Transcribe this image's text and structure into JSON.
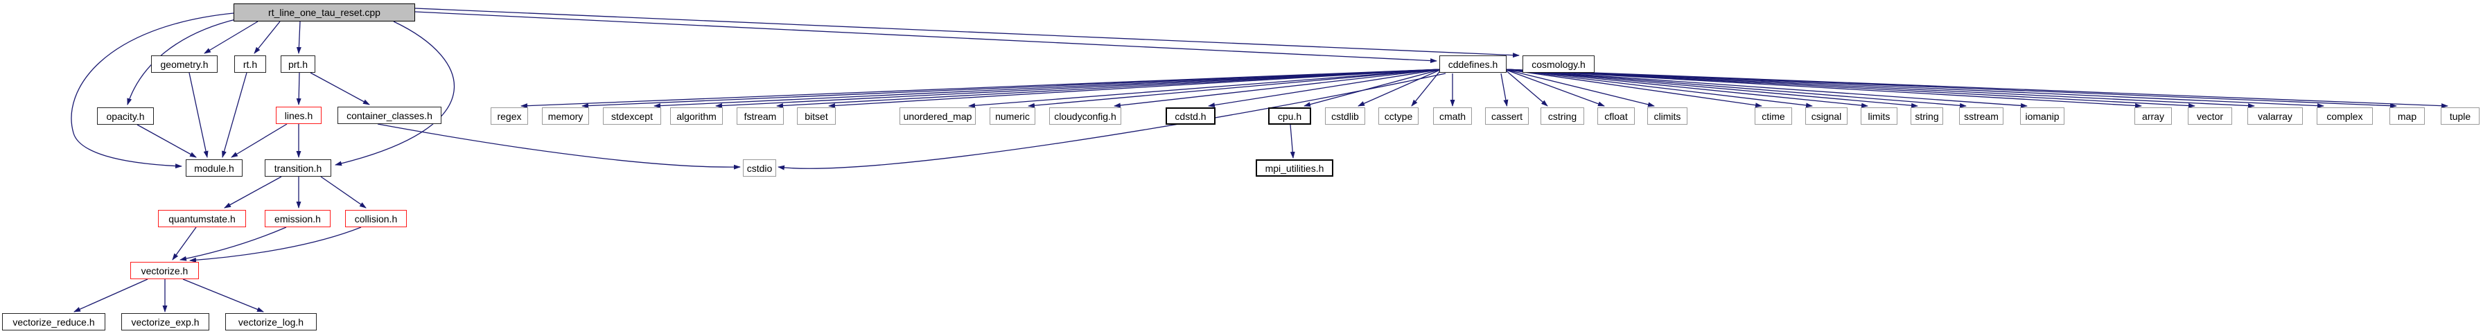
{
  "diagram": {
    "type": "include-dependency-graph",
    "root_file": "rt_line_one_tau_reset.cpp",
    "colors": {
      "edge": "#191970",
      "current_fill": "#bfbfbf",
      "node_border": "#242424",
      "bold_border": "#000000",
      "system_border": "#9a9a9a",
      "truncated_border": "#ff1a1a"
    },
    "nodes": [
      {
        "id": "main",
        "label": "rt_line_one_tau_reset.cpp",
        "style": "current"
      },
      {
        "id": "geometry",
        "label": "geometry.h",
        "style": "project"
      },
      {
        "id": "rt",
        "label": "rt.h",
        "style": "project"
      },
      {
        "id": "prt",
        "label": "prt.h",
        "style": "project"
      },
      {
        "id": "cddefines",
        "label": "cddefines.h",
        "style": "project"
      },
      {
        "id": "cosmology",
        "label": "cosmology.h",
        "style": "project"
      },
      {
        "id": "opacity",
        "label": "opacity.h",
        "style": "project"
      },
      {
        "id": "lines",
        "label": "lines.h",
        "style": "truncated"
      },
      {
        "id": "container_classes",
        "label": "container_classes.h",
        "style": "project"
      },
      {
        "id": "regex",
        "label": "regex",
        "style": "system"
      },
      {
        "id": "memory",
        "label": "memory",
        "style": "system"
      },
      {
        "id": "stdexcept",
        "label": "stdexcept",
        "style": "system"
      },
      {
        "id": "algorithm",
        "label": "algorithm",
        "style": "system"
      },
      {
        "id": "fstream",
        "label": "fstream",
        "style": "system"
      },
      {
        "id": "bitset",
        "label": "bitset",
        "style": "system"
      },
      {
        "id": "unordered_map",
        "label": "unordered_map",
        "style": "system"
      },
      {
        "id": "numeric",
        "label": "numeric",
        "style": "system"
      },
      {
        "id": "cloudyconfig",
        "label": "cloudyconfig.h",
        "style": "system"
      },
      {
        "id": "cdstd",
        "label": "cdstd.h",
        "style": "project-bold"
      },
      {
        "id": "cpu",
        "label": "cpu.h",
        "style": "project-bold"
      },
      {
        "id": "cstdlib",
        "label": "cstdlib",
        "style": "system"
      },
      {
        "id": "cctype",
        "label": "cctype",
        "style": "system"
      },
      {
        "id": "cmath",
        "label": "cmath",
        "style": "system"
      },
      {
        "id": "cassert",
        "label": "cassert",
        "style": "system"
      },
      {
        "id": "cstring",
        "label": "cstring",
        "style": "system"
      },
      {
        "id": "cfloat",
        "label": "cfloat",
        "style": "system"
      },
      {
        "id": "climits",
        "label": "climits",
        "style": "system"
      },
      {
        "id": "ctime",
        "label": "ctime",
        "style": "system"
      },
      {
        "id": "csignal",
        "label": "csignal",
        "style": "system"
      },
      {
        "id": "limits",
        "label": "limits",
        "style": "system"
      },
      {
        "id": "string",
        "label": "string",
        "style": "system"
      },
      {
        "id": "sstream",
        "label": "sstream",
        "style": "system"
      },
      {
        "id": "iomanip",
        "label": "iomanip",
        "style": "system"
      },
      {
        "id": "array",
        "label": "array",
        "style": "system"
      },
      {
        "id": "vector",
        "label": "vector",
        "style": "system"
      },
      {
        "id": "valarray",
        "label": "valarray",
        "style": "system"
      },
      {
        "id": "complex",
        "label": "complex",
        "style": "system"
      },
      {
        "id": "map",
        "label": "map",
        "style": "system"
      },
      {
        "id": "tuple",
        "label": "tuple",
        "style": "system"
      },
      {
        "id": "cstdio",
        "label": "cstdio",
        "style": "system"
      },
      {
        "id": "module",
        "label": "module.h",
        "style": "project"
      },
      {
        "id": "transition",
        "label": "transition.h",
        "style": "project"
      },
      {
        "id": "mpi_utilities",
        "label": "mpi_utilities.h",
        "style": "project-bold"
      },
      {
        "id": "quantumstate",
        "label": "quantumstate.h",
        "style": "truncated"
      },
      {
        "id": "emission",
        "label": "emission.h",
        "style": "truncated"
      },
      {
        "id": "collision",
        "label": "collision.h",
        "style": "truncated"
      },
      {
        "id": "vectorize",
        "label": "vectorize.h",
        "style": "truncated"
      },
      {
        "id": "vectorize_reduce",
        "label": "vectorize_reduce.h",
        "style": "project"
      },
      {
        "id": "vectorize_exp",
        "label": "vectorize_exp.h",
        "style": "project"
      },
      {
        "id": "vectorize_log",
        "label": "vectorize_log.h",
        "style": "project"
      }
    ],
    "edges": [
      {
        "from": "main",
        "to": "geometry"
      },
      {
        "from": "main",
        "to": "rt"
      },
      {
        "from": "main",
        "to": "prt"
      },
      {
        "from": "main",
        "to": "opacity"
      },
      {
        "from": "main",
        "to": "module"
      },
      {
        "from": "main",
        "to": "transition"
      },
      {
        "from": "main",
        "to": "cddefines"
      },
      {
        "from": "main",
        "to": "cosmology"
      },
      {
        "from": "geometry",
        "to": "module"
      },
      {
        "from": "rt",
        "to": "module"
      },
      {
        "from": "opacity",
        "to": "module"
      },
      {
        "from": "prt",
        "to": "lines"
      },
      {
        "from": "prt",
        "to": "container_classes"
      },
      {
        "from": "lines",
        "to": "module"
      },
      {
        "from": "lines",
        "to": "transition"
      },
      {
        "from": "container_classes",
        "to": "cstdio"
      },
      {
        "from": "transition",
        "to": "quantumstate"
      },
      {
        "from": "transition",
        "to": "emission"
      },
      {
        "from": "transition",
        "to": "collision"
      },
      {
        "from": "quantumstate",
        "to": "vectorize"
      },
      {
        "from": "emission",
        "to": "vectorize"
      },
      {
        "from": "collision",
        "to": "vectorize"
      },
      {
        "from": "vectorize",
        "to": "vectorize_reduce"
      },
      {
        "from": "vectorize",
        "to": "vectorize_exp"
      },
      {
        "from": "vectorize",
        "to": "vectorize_log"
      },
      {
        "from": "cpu",
        "to": "mpi_utilities"
      },
      {
        "from": "cddefines",
        "to": "cstdio"
      },
      {
        "from": "cddefines",
        "to": "regex"
      },
      {
        "from": "cddefines",
        "to": "memory"
      },
      {
        "from": "cddefines",
        "to": "stdexcept"
      },
      {
        "from": "cddefines",
        "to": "algorithm"
      },
      {
        "from": "cddefines",
        "to": "fstream"
      },
      {
        "from": "cddefines",
        "to": "bitset"
      },
      {
        "from": "cddefines",
        "to": "unordered_map"
      },
      {
        "from": "cddefines",
        "to": "numeric"
      },
      {
        "from": "cddefines",
        "to": "cloudyconfig"
      },
      {
        "from": "cddefines",
        "to": "cdstd"
      },
      {
        "from": "cddefines",
        "to": "cpu"
      },
      {
        "from": "cddefines",
        "to": "cstdlib"
      },
      {
        "from": "cddefines",
        "to": "cctype"
      },
      {
        "from": "cddefines",
        "to": "cmath"
      },
      {
        "from": "cddefines",
        "to": "cassert"
      },
      {
        "from": "cddefines",
        "to": "cstring"
      },
      {
        "from": "cddefines",
        "to": "cfloat"
      },
      {
        "from": "cddefines",
        "to": "climits"
      },
      {
        "from": "cddefines",
        "to": "ctime"
      },
      {
        "from": "cddefines",
        "to": "csignal"
      },
      {
        "from": "cddefines",
        "to": "limits"
      },
      {
        "from": "cddefines",
        "to": "string"
      },
      {
        "from": "cddefines",
        "to": "sstream"
      },
      {
        "from": "cddefines",
        "to": "iomanip"
      },
      {
        "from": "cddefines",
        "to": "array"
      },
      {
        "from": "cddefines",
        "to": "vector"
      },
      {
        "from": "cddefines",
        "to": "valarray"
      },
      {
        "from": "cddefines",
        "to": "complex"
      },
      {
        "from": "cddefines",
        "to": "map"
      },
      {
        "from": "cddefines",
        "to": "tuple"
      }
    ]
  }
}
